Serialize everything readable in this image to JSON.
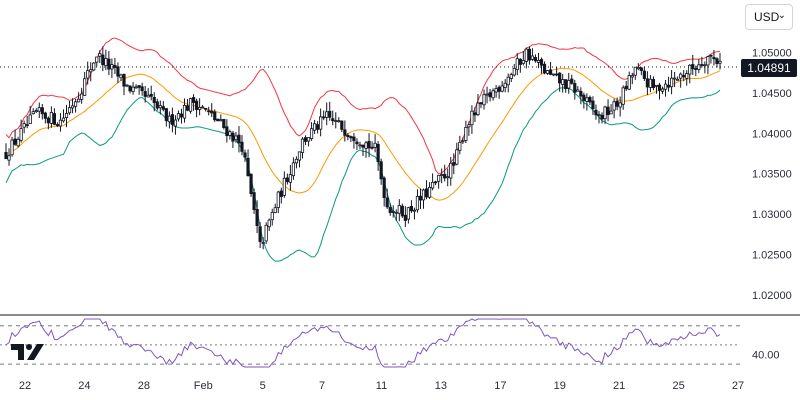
{
  "currency": {
    "label": "USD",
    "chevron": "chevron-down-icon"
  },
  "last_price": "1.04891",
  "logo": {
    "icon": "tradingview-logo-icon"
  },
  "colors": {
    "up": "#131722",
    "down": "#131722",
    "upper_band": "#f23645",
    "middle_band": "#ff9800",
    "lower_band": "#089981",
    "rsi": "#7e57c2",
    "grid": "#e0e3eb"
  },
  "chart_data": [
    {
      "type": "candlestick",
      "title": "",
      "x_ticks": [
        "22",
        "24",
        "28",
        "Feb",
        "5",
        "7",
        "11",
        "13",
        "17",
        "19",
        "21",
        "25",
        "27"
      ],
      "y_ticks": [
        "1.05000",
        "1.04500",
        "1.04000",
        "1.03500",
        "1.03000",
        "1.02500",
        "1.02000"
      ],
      "ylim": [
        1.0175,
        1.0565
      ],
      "grid": false,
      "last_price": 1.04891,
      "overlays": [
        "Bollinger Bands upper",
        "Bollinger Bands basis",
        "Bollinger Bands lower"
      ]
    },
    {
      "type": "line",
      "title": "",
      "y_ticks": [
        "40.00"
      ],
      "ylim": [
        26,
        78
      ],
      "levels": [
        70,
        50,
        30
      ]
    }
  ]
}
